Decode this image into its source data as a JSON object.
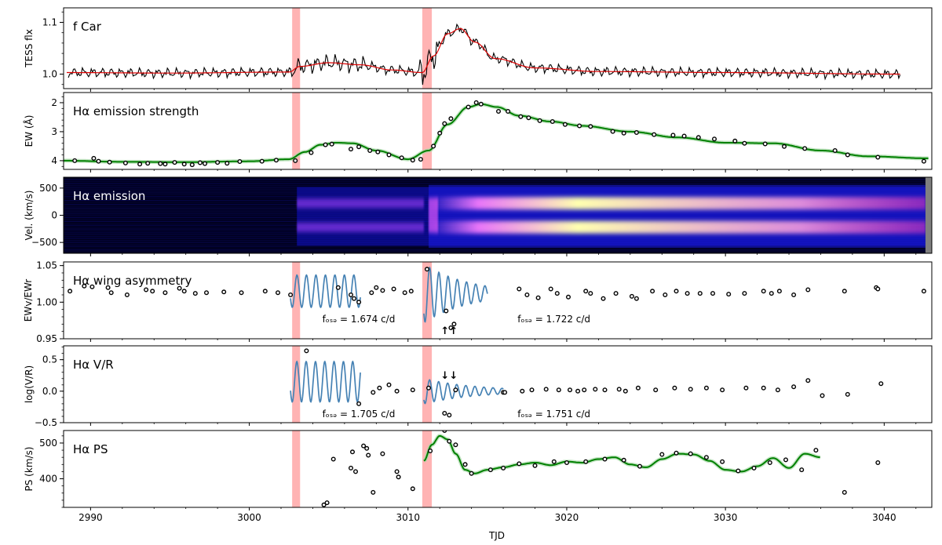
{
  "figure": {
    "xlabel": "TJD",
    "xlim": [
      2988.3,
      3043.0
    ],
    "xticks": [
      2990,
      3000,
      3010,
      3020,
      3030,
      3040
    ],
    "xtick_labels": [
      "2990",
      "3000",
      "3010",
      "3020",
      "3030",
      "3040"
    ],
    "event_bands": [
      [
        3002.7,
        3003.2
      ],
      [
        3010.9,
        3011.5
      ]
    ],
    "colors": {
      "band": "#ffb3b3",
      "fit": "#008000",
      "osc": "#4682b4",
      "tess": "#000000",
      "tess_smooth": "#dd0000",
      "points": "#000000"
    }
  },
  "chart_data": [
    {
      "id": "tess",
      "type": "line",
      "title": "f Car",
      "ylabel": "TESS flx",
      "ylim": [
        0.972,
        1.128
      ],
      "yticks": [
        1.0,
        1.1
      ],
      "ytick_labels": [
        "1.0",
        "1.1"
      ],
      "series": [
        {
          "name": "TESS flux (smoothed)",
          "x": [
            2988.5,
            2995,
            3002.5,
            3003.2,
            3005,
            3007,
            3009,
            3010.9,
            3011.6,
            3012.5,
            3013.3,
            3014.2,
            3015.5,
            3018,
            3022,
            3030,
            3041
          ],
          "y": [
            1.003,
            1.002,
            1.004,
            1.015,
            1.022,
            1.018,
            1.008,
            1.003,
            1.035,
            1.078,
            1.088,
            1.062,
            1.03,
            1.012,
            1.005,
            1.003,
            1.0
          ]
        }
      ]
    },
    {
      "id": "ew",
      "type": "scatter",
      "title": "Hα emission strength",
      "ylabel": "EW (Å)",
      "ylim": [
        4.3,
        1.65
      ],
      "yticks": [
        2,
        3,
        4
      ],
      "ytick_labels": [
        "2",
        "3",
        "4"
      ],
      "inverted": true,
      "series": [
        {
          "name": "EW data",
          "x": [
            2989,
            2990.2,
            2990.5,
            2991.2,
            2992.2,
            2993.1,
            2993.6,
            2994.4,
            2994.7,
            2995.3,
            2995.9,
            2996.4,
            2996.9,
            2997.2,
            2998.0,
            2998.6,
            2999.4,
            3000.8,
            3001.7,
            3002.9,
            3003.9,
            3004.8,
            3005.2,
            3006.4,
            3006.9,
            3007.6,
            3008.1,
            3008.8,
            3009.6,
            3010.3,
            3010.8,
            3011.6,
            3012.0,
            3012.3,
            3012.7,
            3013.8,
            3014.3,
            3014.6,
            3015.7,
            3016.3,
            3017.1,
            3017.6,
            3018.3,
            3019.1,
            3019.9,
            3020.8,
            3021.5,
            3022.9,
            3023.6,
            3024.4,
            3025.5,
            3026.7,
            3027.4,
            3028.3,
            3029.3,
            3030.6,
            3031.2,
            3032.5,
            3033.7,
            3035.0,
            3036.9,
            3037.7,
            3039.6,
            3042.5
          ],
          "y": [
            4.0,
            3.92,
            4.02,
            4.05,
            4.08,
            4.12,
            4.09,
            4.1,
            4.12,
            4.06,
            4.12,
            4.14,
            4.07,
            4.1,
            4.06,
            4.09,
            4.03,
            4.02,
            3.98,
            4.0,
            3.72,
            3.45,
            3.43,
            3.6,
            3.52,
            3.65,
            3.7,
            3.8,
            3.9,
            3.98,
            3.95,
            3.5,
            3.05,
            2.72,
            2.55,
            2.15,
            2.0,
            2.05,
            2.3,
            2.3,
            2.48,
            2.52,
            2.62,
            2.65,
            2.75,
            2.8,
            2.82,
            2.99,
            3.05,
            3.03,
            3.1,
            3.12,
            3.15,
            3.2,
            3.25,
            3.32,
            3.4,
            3.42,
            3.51,
            3.58,
            3.65,
            3.8,
            3.88,
            4.02
          ]
        },
        {
          "name": "EW fit",
          "x": [
            2988.3,
            2992,
            2996,
            3000,
            3002.5,
            3003.5,
            3004.5,
            3005.5,
            3006.5,
            3008,
            3010,
            3011.3,
            3012.5,
            3013.8,
            3014.6,
            3015.6,
            3017,
            3019,
            3021,
            3024,
            3027,
            3030,
            3033,
            3036,
            3039,
            3042.8
          ],
          "y": [
            4.0,
            4.04,
            4.05,
            4.02,
            3.95,
            3.7,
            3.45,
            3.38,
            3.4,
            3.65,
            3.95,
            3.65,
            2.75,
            2.15,
            2.05,
            2.15,
            2.45,
            2.65,
            2.8,
            3.0,
            3.2,
            3.38,
            3.4,
            3.65,
            3.85,
            3.92
          ]
        }
      ]
    },
    {
      "id": "dyn",
      "type": "heatmap",
      "title": "Hα emission",
      "ylabel": "Vel. (km/s)",
      "ylim": [
        -700,
        700
      ],
      "yticks": [
        500,
        0,
        -500
      ],
      "ytick_labels": [
        "500",
        "0",
        "−500"
      ],
      "features": [
        {
          "name": "V peak",
          "velocity": -220
        },
        {
          "name": "R peak",
          "velocity": 220
        }
      ]
    },
    {
      "id": "asym",
      "type": "scatter",
      "title": "Hα wing asymmetry",
      "ylabel": "EWv/EWr",
      "ylim": [
        0.95,
        1.055
      ],
      "yticks": [
        0.95,
        1.0,
        1.05
      ],
      "ytick_labels": [
        "0.95",
        "1.00",
        "1.05"
      ],
      "annotations": [
        "fₒₛₔ = 1.674 c/d",
        "fₒₛₔ = 1.722 c/d"
      ],
      "ann_text": [
        "= 1.674 c/d",
        "= 1.722 c/d"
      ],
      "ann_x": [
        3004.6,
        3016.9
      ],
      "ann_y": [
        0.977,
        0.977
      ],
      "arrows": "↑↑",
      "oscillations": [
        {
          "t0": 3002.6,
          "t1": 3007.0,
          "freq": 1.674,
          "mean": 1.015,
          "amp": 0.022,
          "decay": 0.0
        },
        {
          "t0": 3011.0,
          "t1": 3015.0,
          "freq": 1.722,
          "mean": 1.012,
          "amp": 0.04,
          "decay": 0.35
        }
      ],
      "series": [
        {
          "name": "EWv/EWr data",
          "x": [
            2988.7,
            2989.6,
            2990.1,
            2991.1,
            2991.3,
            2992.3,
            2993.5,
            2993.9,
            2994.7,
            2995.6,
            2995.9,
            2996.6,
            2997.3,
            2998.4,
            2999.5,
            3001.0,
            3001.8,
            3002.6,
            3005.6,
            3006.4,
            3006.6,
            3006.9,
            3007.7,
            3008.0,
            3008.4,
            3009.1,
            3009.8,
            3010.2,
            3011.2,
            3012.4,
            3012.7,
            3012.9,
            3017.0,
            3017.5,
            3018.2,
            3019.0,
            3019.4,
            3020.1,
            3021.2,
            3021.5,
            3022.3,
            3023.1,
            3024.1,
            3024.4,
            3025.4,
            3026.2,
            3026.9,
            3027.6,
            3028.4,
            3029.2,
            3030.2,
            3031.2,
            3032.4,
            3032.9,
            3033.4,
            3034.3,
            3035.2,
            3037.5,
            3039.5,
            3039.6,
            3042.5
          ],
          "y": [
            1.015,
            1.022,
            1.021,
            1.02,
            1.013,
            1.01,
            1.017,
            1.015,
            1.013,
            1.019,
            1.015,
            1.012,
            1.013,
            1.014,
            1.013,
            1.015,
            1.013,
            1.01,
            1.02,
            1.01,
            1.005,
            1.0,
            1.013,
            1.02,
            1.016,
            1.018,
            1.013,
            1.015,
            1.045,
            0.988,
            0.965,
            0.97,
            1.018,
            1.01,
            1.006,
            1.018,
            1.012,
            1.007,
            1.015,
            1.012,
            1.005,
            1.012,
            1.008,
            1.005,
            1.015,
            1.01,
            1.015,
            1.012,
            1.012,
            1.012,
            1.011,
            1.012,
            1.015,
            1.012,
            1.015,
            1.01,
            1.017,
            1.015,
            1.02,
            1.018,
            1.015
          ]
        }
      ]
    },
    {
      "id": "vr",
      "type": "scatter",
      "title": "Hα V/R",
      "ylabel": "log(V/R)",
      "ylim": [
        -0.5,
        0.72
      ],
      "yticks": [
        0.5,
        0.0,
        -0.5
      ],
      "ytick_labels": [
        "0.5",
        "0.0",
        "−0.5"
      ],
      "annotations": [
        "fₒₛₔ = 1.705 c/d",
        "fₒₛₔ = 1.751 c/d"
      ],
      "ann_text": [
        "= 1.705 c/d",
        "= 1.751 c/d"
      ],
      "ann_x": [
        3004.6,
        3016.9
      ],
      "ann_y": [
        -0.36,
        -0.36
      ],
      "arrows": "↓↓",
      "oscillations": [
        {
          "t0": 3002.6,
          "t1": 3007.0,
          "freq": 1.705,
          "mean": 0.15,
          "amp": 0.32,
          "decay": 0.0
        },
        {
          "t0": 3011.0,
          "t1": 3016.0,
          "freq": 1.751,
          "mean": 0.0,
          "amp": 0.2,
          "decay": 0.3
        }
      ],
      "series": [
        {
          "name": "log(V/R) data",
          "x": [
            3003.6,
            3006.9,
            3007.8,
            3008.2,
            3008.8,
            3009.3,
            3010.3,
            3011.3,
            3012.3,
            3012.6,
            3013.0,
            3016.0,
            3016.1,
            3017.2,
            3017.8,
            3018.7,
            3019.5,
            3020.2,
            3020.7,
            3021.1,
            3021.8,
            3022.4,
            3023.3,
            3023.7,
            3024.5,
            3025.6,
            3026.8,
            3027.8,
            3028.8,
            3029.8,
            3031.3,
            3032.4,
            3033.3,
            3034.3,
            3035.2,
            3036.1,
            3037.7,
            3039.8
          ],
          "y": [
            0.64,
            -0.2,
            -0.02,
            0.05,
            0.1,
            0.0,
            0.02,
            0.05,
            -0.35,
            -0.38,
            0.02,
            -0.02,
            -0.02,
            0.0,
            0.02,
            0.03,
            0.02,
            0.02,
            0.0,
            0.02,
            0.03,
            0.02,
            0.03,
            0.0,
            0.05,
            0.02,
            0.05,
            0.03,
            0.05,
            0.02,
            0.05,
            0.05,
            0.02,
            0.07,
            0.17,
            -0.07,
            -0.05,
            0.12
          ]
        }
      ]
    },
    {
      "id": "ps",
      "type": "scatter",
      "title": "Hα PS",
      "ylabel": "PS (km/s)",
      "ylim": [
        320,
        535
      ],
      "yticks": [
        400,
        500
      ],
      "ytick_labels": [
        "400",
        "500"
      ],
      "series": [
        {
          "name": "PS data",
          "x": [
            3004.7,
            3004.9,
            3005.3,
            3006.4,
            3006.5,
            3006.7,
            3007.2,
            3007.4,
            3007.5,
            3007.8,
            3008.4,
            3009.3,
            3009.4,
            3010.3,
            3011.4,
            3012.3,
            3012.6,
            3013.0,
            3013.6,
            3014.0,
            3015.2,
            3016.0,
            3017.0,
            3018.0,
            3019.2,
            3020.0,
            3021.2,
            3022.4,
            3023.6,
            3024.6,
            3026.0,
            3026.9,
            3027.8,
            3028.8,
            3029.8,
            3030.8,
            3031.8,
            3032.8,
            3033.8,
            3034.8,
            3035.7,
            3037.5,
            3039.6
          ],
          "y": [
            327,
            333,
            455,
            430,
            475,
            420,
            492,
            485,
            466,
            362,
            470,
            420,
            405,
            372,
            478,
            535,
            505,
            495,
            440,
            415,
            425,
            430,
            442,
            437,
            448,
            445,
            448,
            455,
            452,
            435,
            468,
            472,
            470,
            460,
            448,
            422,
            430,
            445,
            453,
            425,
            480,
            362,
            445
          ]
        },
        {
          "name": "PS fit",
          "x": [
            3011.0,
            3011.5,
            3012.0,
            3012.5,
            3013.0,
            3013.6,
            3014.2,
            3015.0,
            3016.0,
            3017.0,
            3018.0,
            3019.0,
            3020.0,
            3021.0,
            3022.0,
            3023.0,
            3024.0,
            3025.0,
            3026.0,
            3027.0,
            3028.0,
            3029.0,
            3030.0,
            3031.0,
            3032.0,
            3033.0,
            3034.0,
            3035.0,
            3036.0
          ],
          "y": [
            450,
            495,
            520,
            510,
            470,
            425,
            415,
            425,
            432,
            440,
            445,
            438,
            448,
            445,
            455,
            460,
            440,
            432,
            455,
            470,
            468,
            450,
            425,
            420,
            435,
            458,
            430,
            470,
            460
          ]
        }
      ]
    }
  ]
}
